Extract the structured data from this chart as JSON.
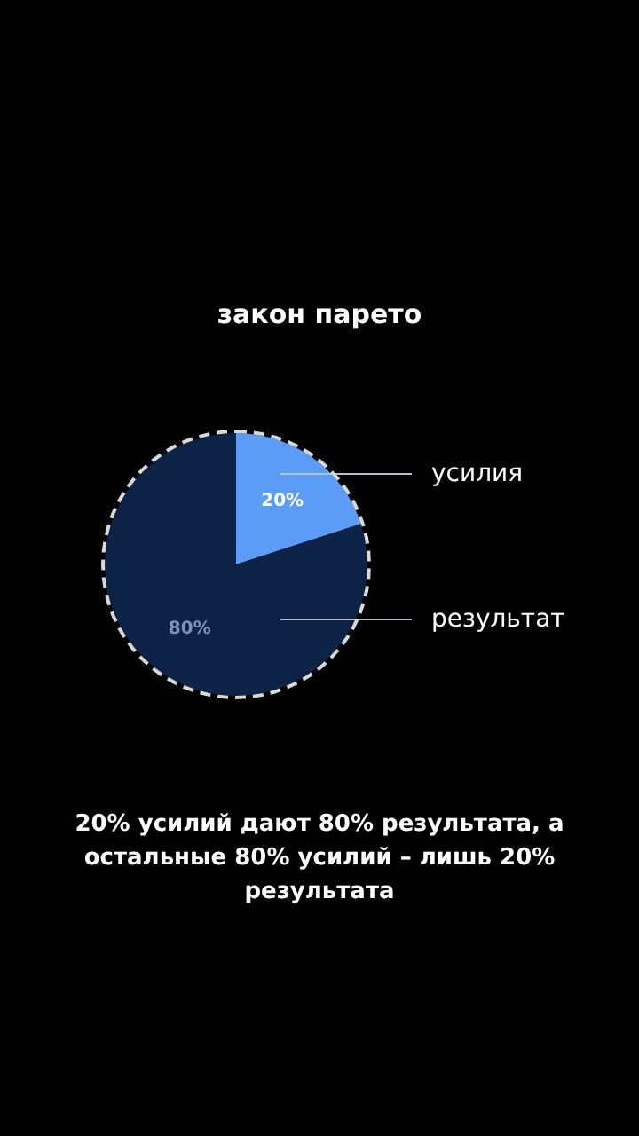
{
  "chart_data": {
    "type": "pie",
    "title": "закон парето",
    "categories": [
      "усилия",
      "результат"
    ],
    "values": [
      20,
      80
    ],
    "colors": [
      "#5b9cf6",
      "#0c2347"
    ],
    "value_labels": [
      "20%",
      "80%"
    ],
    "annotations": [
      "20% усилий дают 80% результата, а остальные 80% усилий – лишь 20% результата"
    ]
  }
}
